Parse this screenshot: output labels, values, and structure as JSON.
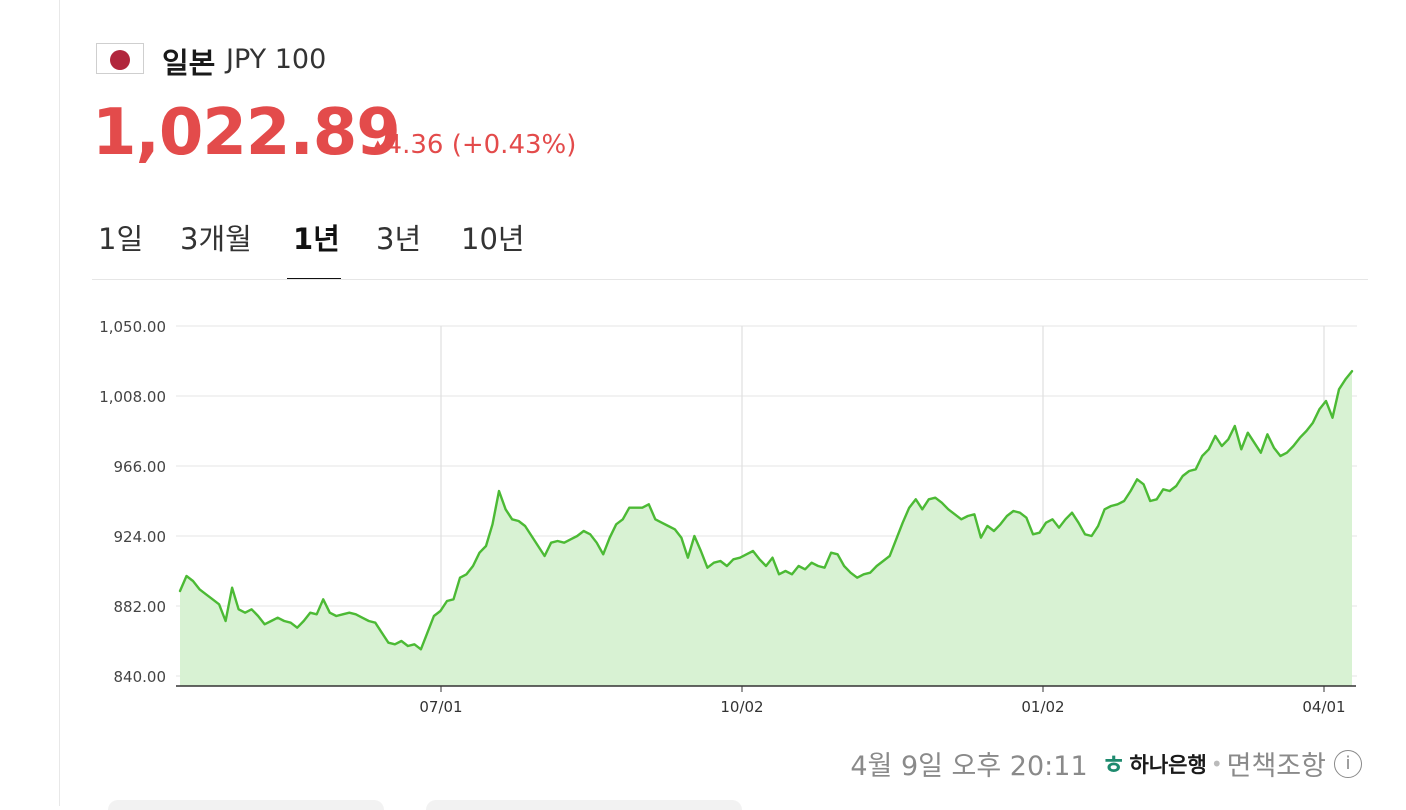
{
  "header": {
    "country": "일본",
    "currency_code": "JPY 100",
    "price": "1,022.89",
    "change_arrow": "▲",
    "change": "4.36 (+0.43%)",
    "price_color": "#e34b4b"
  },
  "tabs": [
    {
      "label": "1일",
      "active": false
    },
    {
      "label": "3개월",
      "active": false
    },
    {
      "label": "1년",
      "active": true
    },
    {
      "label": "3년",
      "active": false
    },
    {
      "label": "10년",
      "active": false
    }
  ],
  "footer": {
    "timestamp": "4월 9일 오후 20:11",
    "bank": "하나은행",
    "separator": "•",
    "disclaimer": "면책조항"
  },
  "chart_data": {
    "type": "area",
    "title": "",
    "xlabel": "",
    "ylabel": "",
    "ylim": [
      840,
      1050
    ],
    "y_ticks": [
      "1,050.00",
      "1,008.00",
      "966.00",
      "924.00",
      "882.00",
      "840.00"
    ],
    "x_ticks": [
      "07/01",
      "10/02",
      "01/02",
      "04/01"
    ],
    "grid": true,
    "line_color": "#4cba35",
    "fill_color": "#d8f2d3",
    "series": [
      {
        "values": [
          891,
          900,
          897,
          892,
          889,
          886,
          883,
          873,
          893,
          880,
          878,
          880,
          876,
          871,
          873,
          875,
          873,
          872,
          869,
          873,
          878,
          877,
          886,
          878,
          876,
          877,
          878,
          877,
          875,
          873,
          872,
          866,
          860,
          859,
          861,
          858,
          859,
          856,
          866,
          876,
          879,
          885,
          886,
          899,
          901,
          906,
          914,
          918,
          931,
          951,
          940,
          934,
          933,
          930,
          924,
          918,
          912,
          920,
          921,
          920,
          922,
          924,
          927,
          925,
          920,
          913,
          923,
          931,
          934,
          941,
          941,
          941,
          943,
          934,
          932,
          930,
          928,
          923,
          911,
          924,
          915,
          905,
          908,
          909,
          906,
          910,
          911,
          913,
          915,
          910,
          906,
          911,
          901,
          903,
          901,
          906,
          904,
          908,
          906,
          905,
          914,
          913,
          906,
          902,
          899,
          901,
          902,
          906,
          909,
          912,
          922,
          932,
          941,
          946,
          940,
          946,
          947,
          944,
          940,
          937,
          934,
          936,
          937,
          923,
          930,
          927,
          931,
          936,
          939,
          938,
          935,
          925,
          926,
          932,
          934,
          929,
          934,
          938,
          932,
          925,
          924,
          930,
          940,
          942,
          943,
          945,
          951,
          958,
          955,
          945,
          946,
          952,
          951,
          954,
          960,
          963,
          964,
          972,
          976,
          984,
          978,
          982,
          990,
          976,
          986,
          980,
          974,
          985,
          977,
          972,
          974,
          978,
          983,
          987,
          992,
          1000,
          1005,
          995,
          1012,
          1018,
          1022.89
        ]
      }
    ]
  }
}
